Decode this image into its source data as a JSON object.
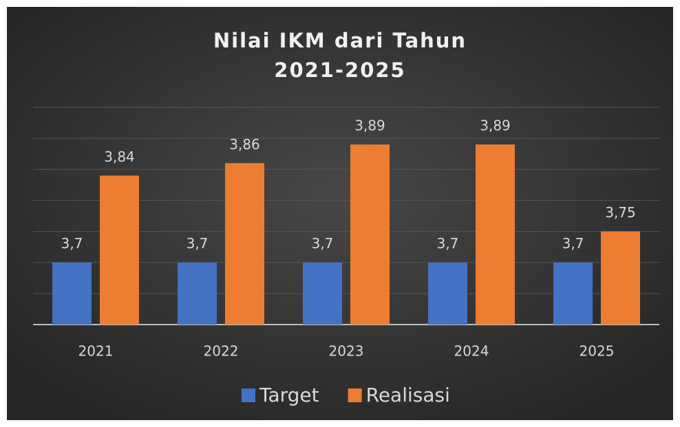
{
  "chart_data": {
    "type": "bar",
    "title": "Nilai IKM dari Tahun 2021-2025",
    "categories": [
      "2021",
      "2022",
      "2023",
      "2024",
      "2025"
    ],
    "series": [
      {
        "name": "Target",
        "color": "#4472c4",
        "values": [
          3.7,
          3.7,
          3.7,
          3.7,
          3.7
        ],
        "value_labels": [
          "3,7",
          "3,7",
          "3,7",
          "3,7",
          "3,7"
        ]
      },
      {
        "name": "Realisasi",
        "color": "#ed7d31",
        "values": [
          3.84,
          3.86,
          3.89,
          3.89,
          3.75
        ],
        "value_labels": [
          "3,84",
          "3,86",
          "3,89",
          "3,89",
          "3,75"
        ]
      }
    ],
    "ylim": [
      3.6,
      3.95
    ],
    "yticks": [
      3.6,
      3.65,
      3.7,
      3.75,
      3.8,
      3.85,
      3.9,
      3.95
    ],
    "grid": true,
    "legend": "bottom"
  }
}
